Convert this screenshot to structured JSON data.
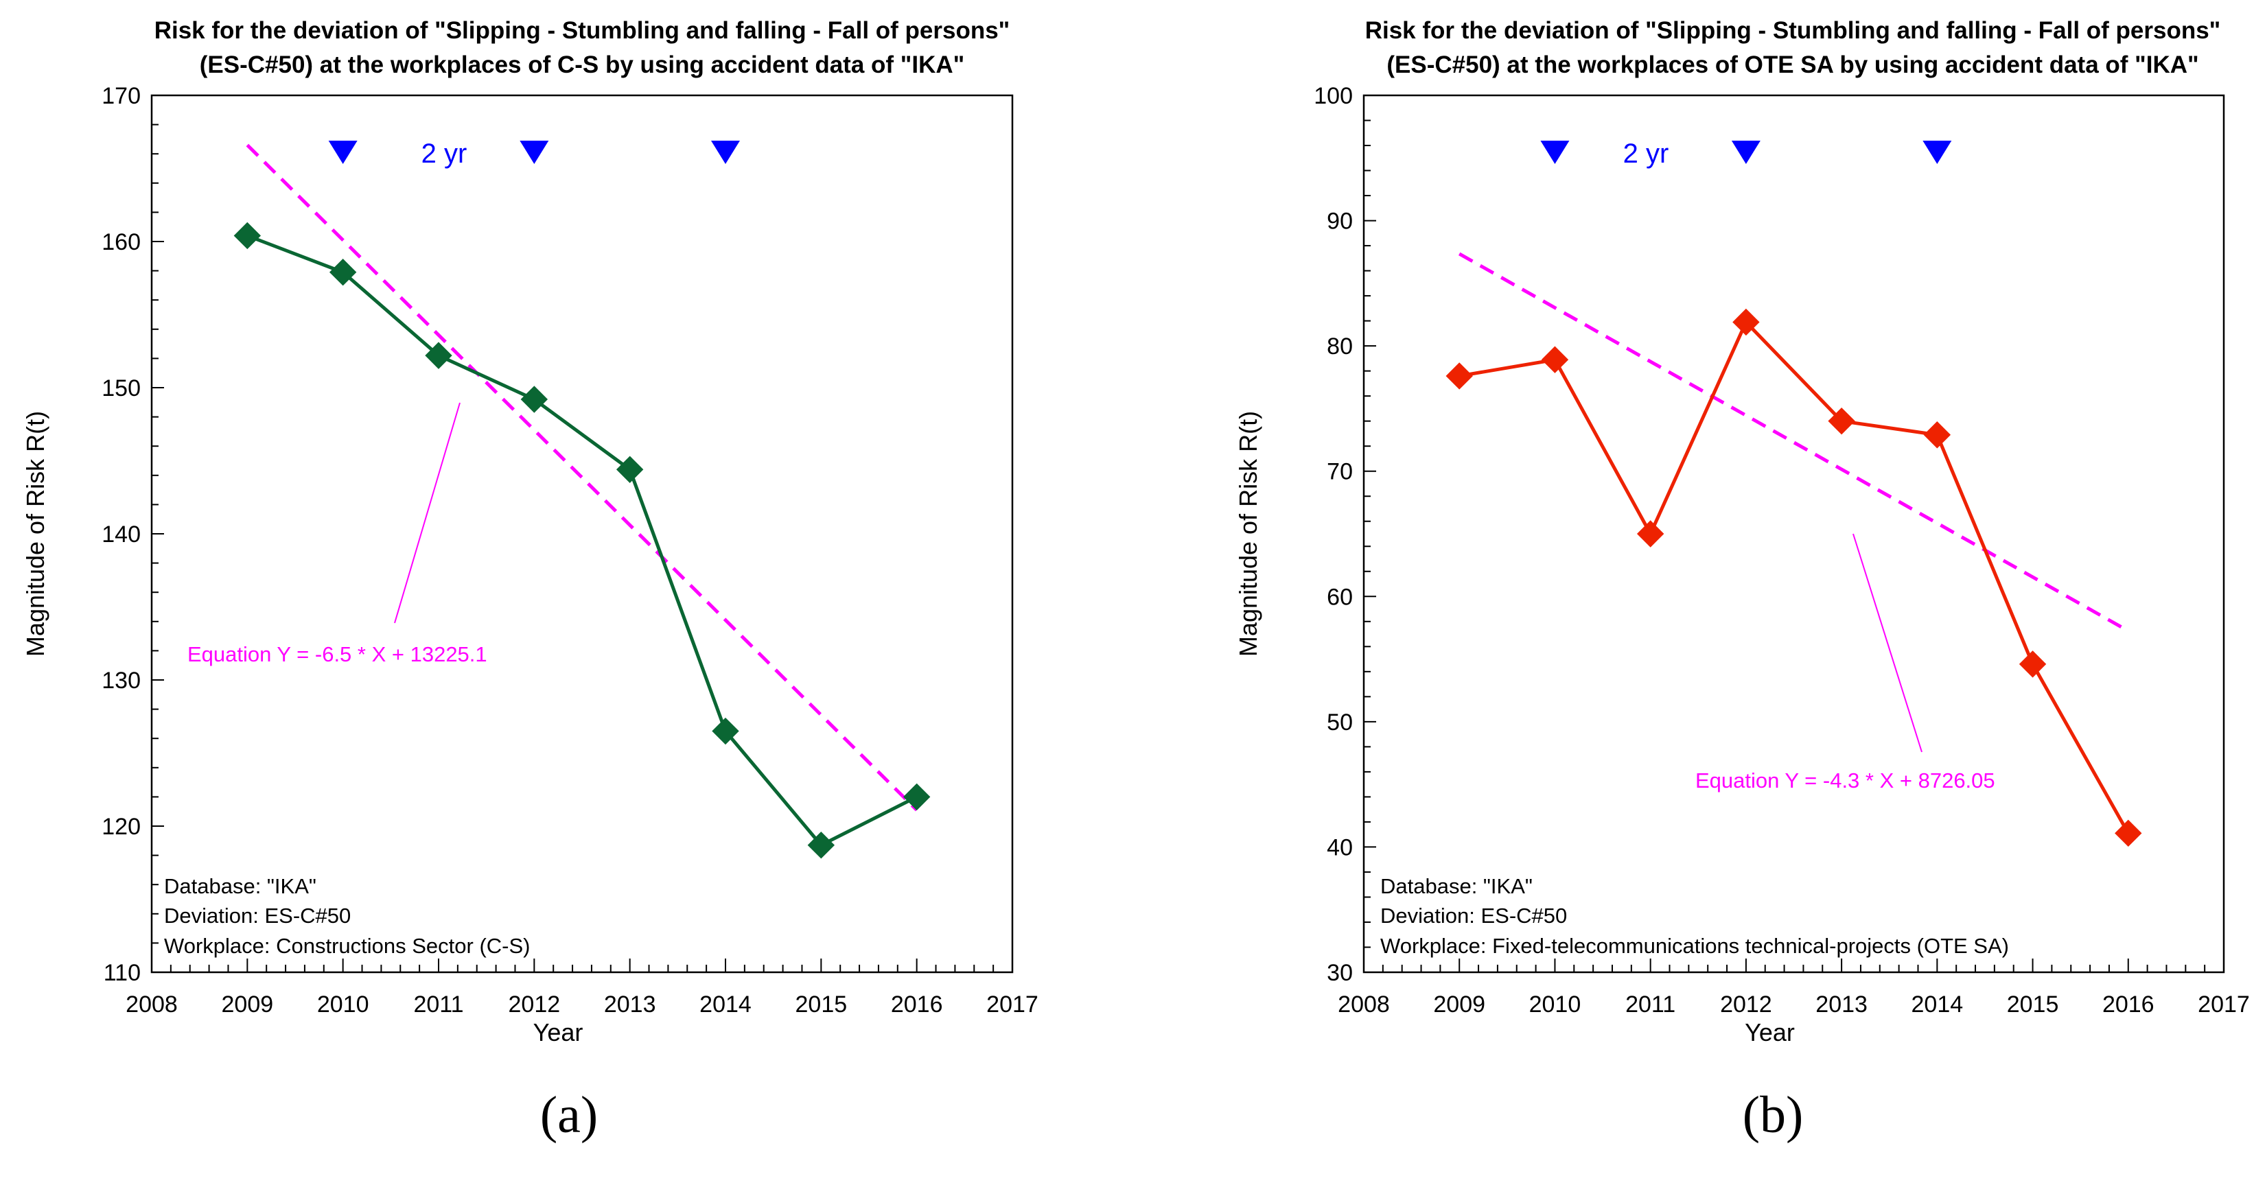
{
  "chart_data": [
    {
      "type": "line",
      "panel_label": "(a)",
      "title_lines": [
        "Risk for the deviation of \"Slipping - Stumbling and falling - Fall of persons\"",
        "(ES-C#50) at the workplaces of C-S by using accident data of \"IKA\""
      ],
      "xlabel": "Year",
      "ylabel": "Magnitude of Risk R(t)",
      "xlim": [
        2008,
        2017
      ],
      "ylim": [
        110,
        170
      ],
      "x_ticks": [
        2008,
        2009,
        2010,
        2011,
        2012,
        2013,
        2014,
        2015,
        2016,
        2017
      ],
      "y_ticks": [
        110,
        120,
        130,
        140,
        150,
        160,
        170
      ],
      "series": [
        {
          "color": "#0a6633",
          "marker": "diamond",
          "x": [
            2009,
            2010,
            2011,
            2012,
            2013,
            2014,
            2015,
            2016
          ],
          "y": [
            160.4,
            157.9,
            152.2,
            149.2,
            144.4,
            126.5,
            118.7,
            122.0
          ]
        }
      ],
      "trendline": {
        "color": "#ff00ff",
        "style": "dashed",
        "equation_text": "Equation Y = -6.5 * X + 13225.1",
        "slope": -6.5,
        "intercept": 13225.1,
        "x_range": [
          2009,
          2016
        ]
      },
      "period_markers": {
        "x": [
          2010,
          2012,
          2014
        ],
        "label": "2 yr",
        "color": "#0000ff"
      },
      "info_lines": [
        "Database: \"IKA\"",
        "Deviation: ES-C#50",
        "Workplace: Constructions Sector (C-S)"
      ],
      "grid": false
    },
    {
      "type": "line",
      "panel_label": "(b)",
      "title_lines": [
        "Risk for the deviation of \"Slipping - Stumbling and falling - Fall of persons\"",
        "(ES-C#50) at the workplaces of OTE SA by using accident data of \"IKA\""
      ],
      "xlabel": "Year",
      "ylabel": "Magnitude of Risk R(t)",
      "xlim": [
        2008,
        2017
      ],
      "ylim": [
        30,
        100
      ],
      "x_ticks": [
        2008,
        2009,
        2010,
        2011,
        2012,
        2013,
        2014,
        2015,
        2016,
        2017
      ],
      "y_ticks": [
        30,
        40,
        50,
        60,
        70,
        80,
        90,
        100
      ],
      "series": [
        {
          "color": "#ee2200",
          "marker": "diamond",
          "x": [
            2009,
            2010,
            2011,
            2012,
            2013,
            2014,
            2015,
            2016
          ],
          "y": [
            77.6,
            78.9,
            65.0,
            81.9,
            74.0,
            72.9,
            54.6,
            41.1
          ]
        }
      ],
      "trendline": {
        "color": "#ff00ff",
        "style": "dashed",
        "equation_text": "Equation Y = -4.3 * X + 8726.05",
        "slope": -4.3,
        "intercept": 8726.05,
        "x_range": [
          2009,
          2016
        ]
      },
      "period_markers": {
        "x": [
          2010,
          2012,
          2014
        ],
        "label": "2 yr",
        "color": "#0000ff"
      },
      "info_lines": [
        "Database: \"IKA\"",
        "Deviation: ES-C#50",
        "Workplace: Fixed-telecommunications technical-projects (OTE SA)"
      ],
      "grid": false
    }
  ]
}
